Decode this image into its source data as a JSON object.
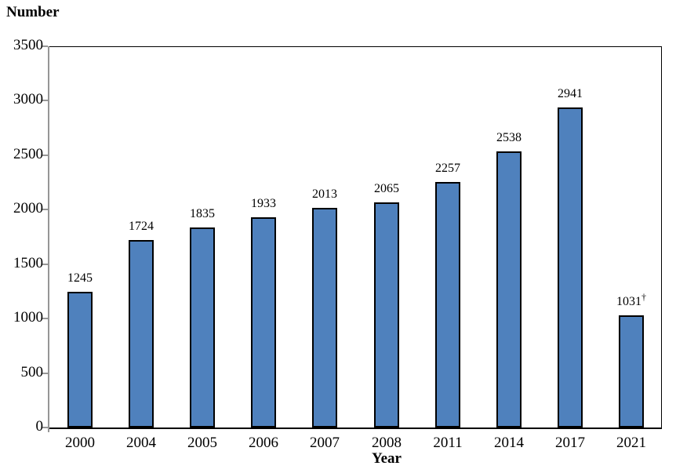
{
  "chart_data": {
    "type": "bar",
    "title": "",
    "ylabel": "Number",
    "xlabel": "Year",
    "categories": [
      "2000",
      "2004",
      "2005",
      "2006",
      "2007",
      "2008",
      "2011",
      "2014",
      "2017",
      "2021"
    ],
    "values": [
      1245,
      1724,
      1835,
      1933,
      2013,
      2065,
      2257,
      2538,
      2941,
      1031
    ],
    "value_labels": [
      {
        "text": "1245",
        "sup": ""
      },
      {
        "text": "1724",
        "sup": ""
      },
      {
        "text": "1835",
        "sup": ""
      },
      {
        "text": "1933",
        "sup": ""
      },
      {
        "text": "2013",
        "sup": ""
      },
      {
        "text": "2065",
        "sup": ""
      },
      {
        "text": "2257",
        "sup": ""
      },
      {
        "text": "2538",
        "sup": ""
      },
      {
        "text": "2941",
        "sup": ""
      },
      {
        "text": "1031",
        "sup": "†"
      }
    ],
    "ylim": [
      0,
      3500
    ],
    "yticks": [
      0,
      500,
      1000,
      1500,
      2000,
      2500,
      3000,
      3500
    ],
    "grid": false,
    "legend": false,
    "bar_color": "#4F81BD",
    "bar_border_color": "#000000",
    "y_axis_color": "#969696",
    "frame_color": "#000000"
  }
}
